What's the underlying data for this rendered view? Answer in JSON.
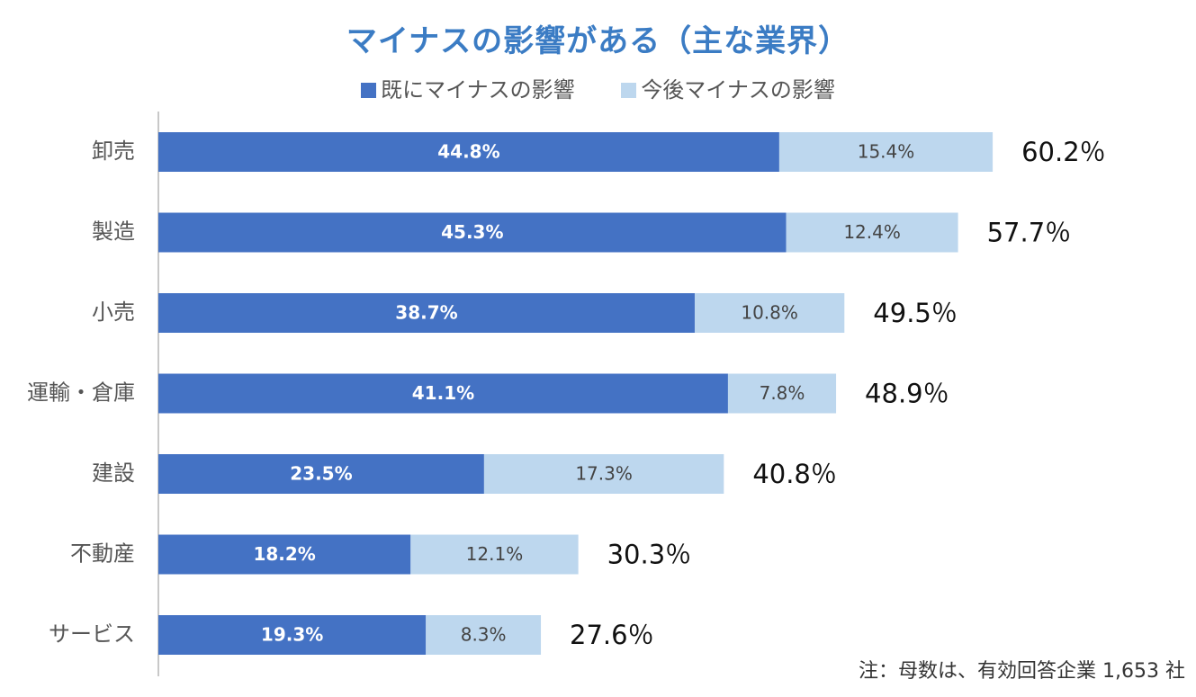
{
  "title": "マイナスの影響がある（主な業界）",
  "legend": {
    "series1": "既にマイナスの影響",
    "series2": "今後マイナスの影響"
  },
  "colors": {
    "series1": "#4472c4",
    "series2": "#bdd7ee",
    "title": "#3b7cc4"
  },
  "footnote": "注：母数は、有効回答企業 1,653 社",
  "chart_data": {
    "type": "bar",
    "orientation": "horizontal",
    "stacked": true,
    "categories": [
      "卸売",
      "製造",
      "小売",
      "運輸・倉庫",
      "建設",
      "不動産",
      "サービス"
    ],
    "series": [
      {
        "name": "既にマイナスの影響",
        "values": [
          44.8,
          45.3,
          38.7,
          41.1,
          23.5,
          18.2,
          19.3
        ],
        "labels": [
          "44.8%",
          "45.3%",
          "38.7%",
          "41.1%",
          "23.5%",
          "18.2%",
          "19.3%"
        ]
      },
      {
        "name": "今後マイナスの影響",
        "values": [
          15.4,
          12.4,
          10.8,
          7.8,
          17.3,
          12.1,
          8.3
        ],
        "labels": [
          "15.4%",
          "12.4%",
          "10.8%",
          "7.8%",
          "17.3%",
          "12.1%",
          "8.3%"
        ]
      }
    ],
    "totals": [
      60.2,
      57.7,
      49.5,
      48.9,
      40.8,
      30.3,
      27.6
    ],
    "total_labels": [
      "60.2％",
      "57.7％",
      "49.5％",
      "48.9％",
      "40.8％",
      "30.3％",
      "27.6％"
    ],
    "grid": false,
    "legend_position": "top"
  }
}
